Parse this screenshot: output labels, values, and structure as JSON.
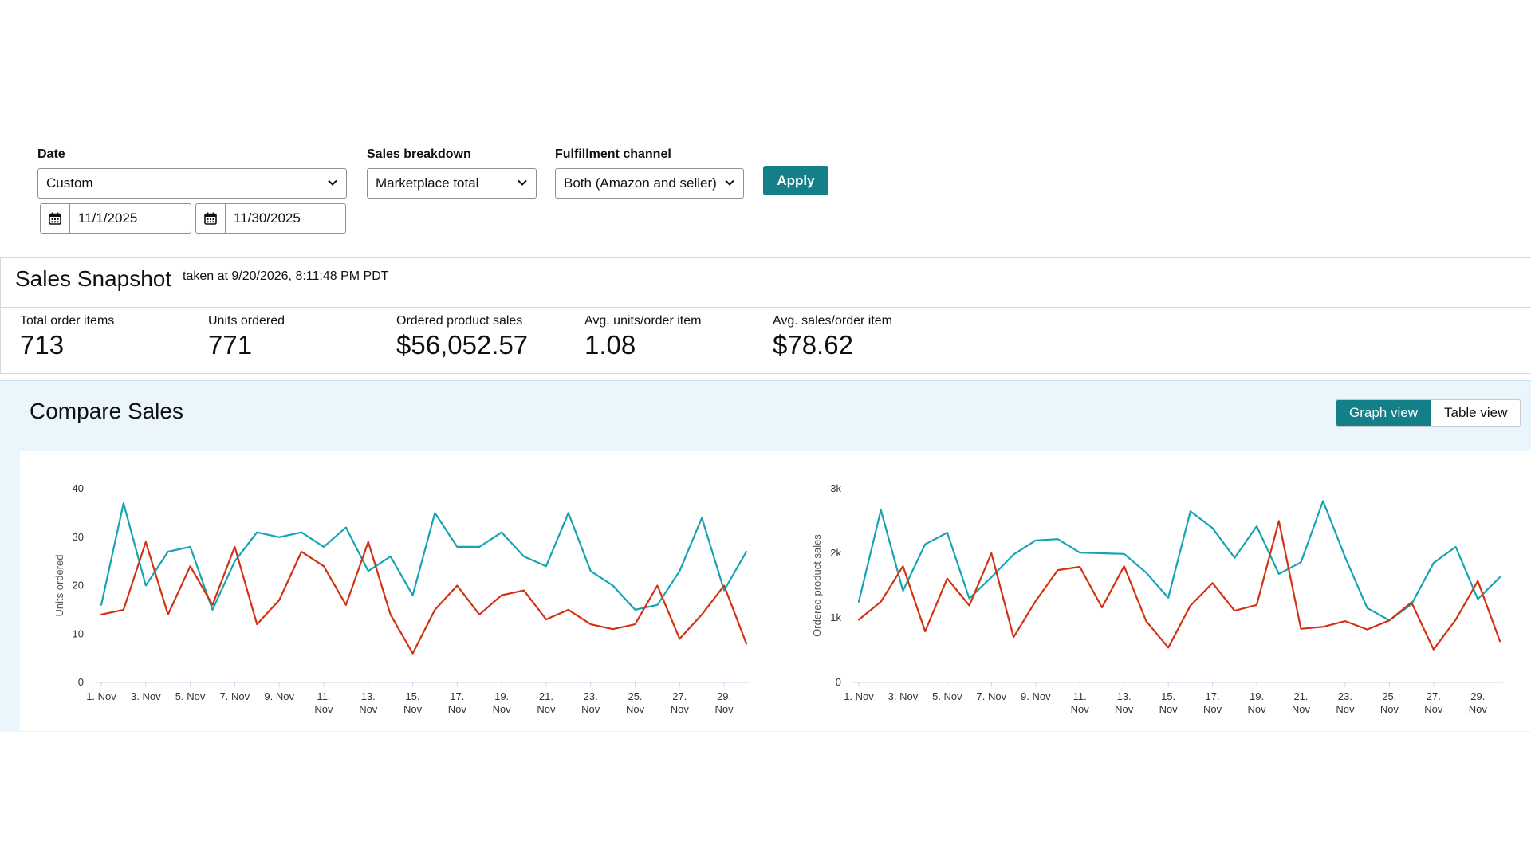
{
  "filters": {
    "date": {
      "label": "Date",
      "value": "Custom",
      "start": "11/1/2025",
      "end": "11/30/2025"
    },
    "breakdown": {
      "label": "Sales breakdown",
      "value": "Marketplace total"
    },
    "fulfillment": {
      "label": "Fulfillment channel",
      "value": "Both (Amazon and seller)"
    },
    "apply_label": "Apply"
  },
  "snapshot": {
    "title": "Sales Snapshot",
    "timestamp": "taken at 9/20/2026, 8:11:48 PM PDT",
    "metrics": [
      {
        "label": "Total order items",
        "value": "713"
      },
      {
        "label": "Units ordered",
        "value": "771"
      },
      {
        "label": "Ordered product sales",
        "value": "$56,052.57"
      },
      {
        "label": "Avg. units/order item",
        "value": "1.08"
      },
      {
        "label": "Avg. sales/order item",
        "value": "$78.62"
      }
    ]
  },
  "compare": {
    "title": "Compare Sales",
    "graph_view_label": "Graph view",
    "table_view_label": "Table view"
  },
  "colors": {
    "accent": "#137f89",
    "series_teal": "#16a4b2",
    "series_red": "#d13212"
  },
  "chart_data": [
    {
      "type": "line",
      "ylabel": "Units ordered",
      "ylim": [
        0,
        40
      ],
      "yticks": [
        "0",
        "10",
        "20",
        "30",
        "40"
      ],
      "xtick_labels": [
        [
          "1. Nov"
        ],
        [
          "3. Nov"
        ],
        [
          "5. Nov"
        ],
        [
          "7. Nov"
        ],
        [
          "9. Nov"
        ],
        [
          "11.",
          "Nov"
        ],
        [
          "13.",
          "Nov"
        ],
        [
          "15.",
          "Nov"
        ],
        [
          "17.",
          "Nov"
        ],
        [
          "19.",
          "Nov"
        ],
        [
          "21.",
          "Nov"
        ],
        [
          "23.",
          "Nov"
        ],
        [
          "25.",
          "Nov"
        ],
        [
          "27.",
          "Nov"
        ],
        [
          "29.",
          "Nov"
        ]
      ],
      "days": [
        1,
        2,
        3,
        4,
        5,
        6,
        7,
        8,
        9,
        10,
        11,
        12,
        13,
        14,
        15,
        16,
        17,
        18,
        19,
        20,
        21,
        22,
        23,
        24,
        25,
        26,
        27,
        28,
        29,
        30
      ],
      "series": [
        {
          "color": "#16a4b2",
          "values": [
            16,
            37,
            20,
            27,
            28,
            15,
            25,
            31,
            30,
            31,
            28,
            32,
            23,
            26,
            18,
            35,
            28,
            28,
            31,
            26,
            24,
            35,
            23,
            20,
            15,
            16,
            23,
            34,
            19,
            27
          ]
        },
        {
          "color": "#d13212",
          "values": [
            14,
            15,
            29,
            14,
            24,
            16,
            28,
            12,
            17,
            27,
            24,
            16,
            29,
            14,
            6,
            15,
            20,
            14,
            18,
            19,
            13,
            15,
            12,
            11,
            12,
            20,
            9,
            14,
            20,
            8
          ]
        }
      ]
    },
    {
      "type": "line",
      "ylabel": "Ordered product sales",
      "ylim": [
        0,
        3000
      ],
      "yticks": [
        "0",
        "1k",
        "2k",
        "3k"
      ],
      "xtick_labels": [
        [
          "1. Nov"
        ],
        [
          "3. Nov"
        ],
        [
          "5. Nov"
        ],
        [
          "7. Nov"
        ],
        [
          "9. Nov"
        ],
        [
          "11.",
          "Nov"
        ],
        [
          "13.",
          "Nov"
        ],
        [
          "15.",
          "Nov"
        ],
        [
          "17.",
          "Nov"
        ],
        [
          "19.",
          "Nov"
        ],
        [
          "21.",
          "Nov"
        ],
        [
          "23.",
          "Nov"
        ],
        [
          "25.",
          "Nov"
        ],
        [
          "27.",
          "Nov"
        ],
        [
          "29.",
          "Nov"
        ]
      ],
      "days": [
        1,
        2,
        3,
        4,
        5,
        6,
        7,
        8,
        9,
        10,
        11,
        12,
        13,
        14,
        15,
        16,
        17,
        18,
        19,
        20,
        21,
        22,
        23,
        24,
        25,
        26,
        27,
        28,
        29,
        30
      ],
      "series": [
        {
          "color": "#16a4b2",
          "values": [
            1250,
            2670,
            1420,
            2140,
            2320,
            1300,
            1630,
            1980,
            2200,
            2220,
            2010,
            2000,
            1990,
            1700,
            1310,
            2650,
            2390,
            1930,
            2420,
            1680,
            1860,
            2810,
            1940,
            1150,
            960,
            1210,
            1850,
            2100,
            1290,
            1630
          ]
        },
        {
          "color": "#d13212",
          "values": [
            970,
            1250,
            1800,
            790,
            1610,
            1190,
            2000,
            700,
            1260,
            1740,
            1790,
            1160,
            1800,
            950,
            540,
            1190,
            1540,
            1110,
            1200,
            2500,
            830,
            860,
            950,
            820,
            960,
            1240,
            510,
            970,
            1570,
            640
          ]
        }
      ]
    }
  ]
}
